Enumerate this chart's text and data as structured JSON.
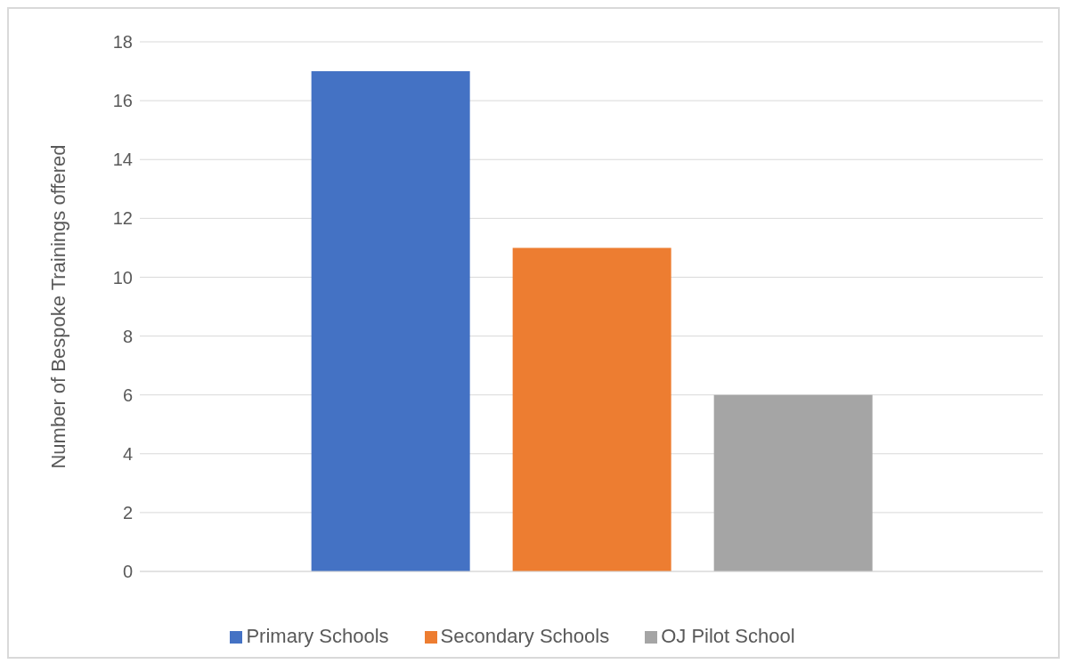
{
  "chart_data": {
    "type": "bar",
    "ylabel": "Number of Bespoke Trainings offered",
    "categories": [
      null
    ],
    "series": [
      {
        "name": "Primary Schools",
        "color": "#4472c4",
        "values": [
          17
        ]
      },
      {
        "name": "Secondary Schools",
        "color": "#ed7d31",
        "values": [
          11
        ]
      },
      {
        "name": "OJ Pilot School",
        "color": "#a5a5a5",
        "values": [
          6
        ]
      }
    ],
    "ylim": [
      0,
      18
    ],
    "yticks": [
      0,
      2,
      4,
      6,
      8,
      10,
      12,
      14,
      16,
      18
    ],
    "grid": "y",
    "legend": "bottom"
  }
}
